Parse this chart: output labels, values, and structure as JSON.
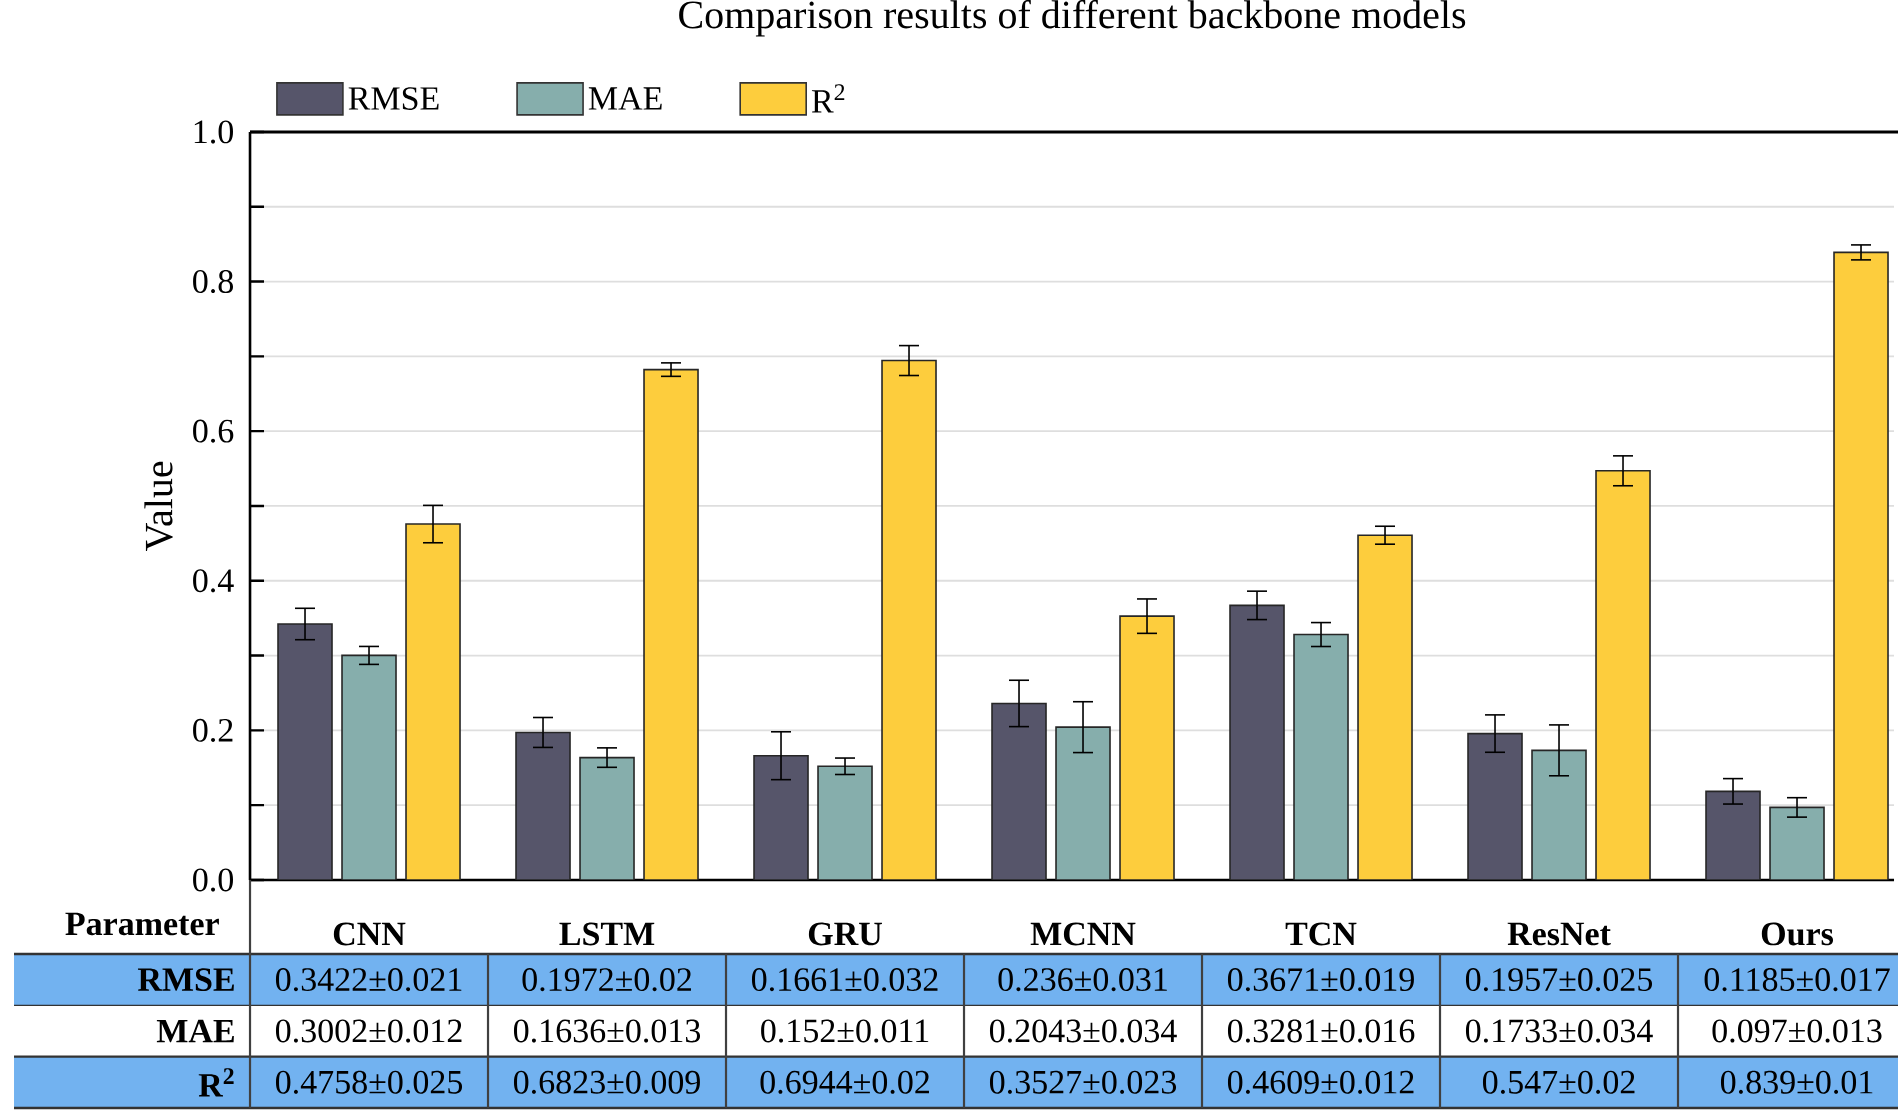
{
  "chart_data": {
    "type": "bar",
    "title": "Comparison results of different backbone models",
    "ylabel": "Value",
    "annotations": [
      "Parameter"
    ],
    "categories": [
      "CNN",
      "LSTM",
      "GRU",
      "MCNN",
      "TCN",
      "ResNet",
      "Ours"
    ],
    "series": [
      {
        "name": "RMSE",
        "color": "#56556a",
        "values": [
          0.3422,
          0.1972,
          0.1661,
          0.236,
          0.3671,
          0.1957,
          0.1185
        ],
        "errors": [
          0.021,
          0.02,
          0.032,
          0.031,
          0.019,
          0.025,
          0.017
        ],
        "value_labels": [
          "0.3422±0.021",
          "0.1972±0.02",
          "0.1661±0.032",
          "0.236±0.031",
          "0.3671±0.019",
          "0.1957±0.025",
          "0.1185±0.017"
        ]
      },
      {
        "name": "MAE",
        "color": "#86aeac",
        "values": [
          0.3002,
          0.1636,
          0.152,
          0.2043,
          0.3281,
          0.1733,
          0.097
        ],
        "errors": [
          0.012,
          0.013,
          0.011,
          0.034,
          0.016,
          0.034,
          0.013
        ],
        "value_labels": [
          "0.3002±0.012",
          "0.1636±0.013",
          "0.152±0.011",
          "0.2043±0.034",
          "0.3281±0.016",
          "0.1733±0.034",
          "0.097±0.013"
        ]
      },
      {
        "name": "R$^{2}$",
        "color": "#fdcd3d",
        "values": [
          0.4758,
          0.6823,
          0.6944,
          0.3527,
          0.4609,
          0.547,
          0.839
        ],
        "errors": [
          0.025,
          0.009,
          0.02,
          0.023,
          0.012,
          0.02,
          0.01
        ],
        "value_labels": [
          "0.4758±0.025",
          "0.6823±0.009",
          "0.6944±0.02",
          "0.3527±0.023",
          "0.4609±0.012",
          "0.547±0.02",
          "0.839±0.01"
        ]
      }
    ],
    "ylim": [
      0,
      1
    ],
    "yticks": [
      {
        "value": 0,
        "label": "0.0"
      },
      {
        "value": 0.1,
        "label": null
      },
      0.2,
      {
        "value": 0.3,
        "label": null
      },
      0.4,
      {
        "value": 0.5,
        "label": null
      },
      0.6,
      {
        "value": 0.7,
        "label": null
      },
      0.8,
      {
        "value": 0.9,
        "label": null
      },
      {
        "value": 1,
        "label": "1.0"
      }
    ],
    "grid": "y",
    "legend": "top left"
  }
}
